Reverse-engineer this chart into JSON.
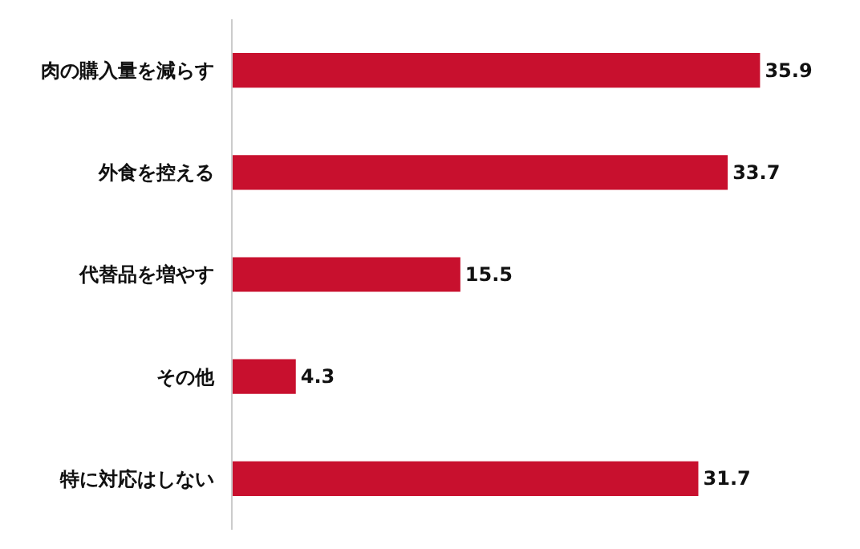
{
  "chart_data": {
    "type": "bar",
    "orientation": "horizontal",
    "categories": [
      "肉の購入量を減らす",
      "外食を控える",
      "代替品を増やす",
      "その他",
      "特に対応はしない"
    ],
    "values": [
      35.9,
      33.7,
      15.5,
      4.3,
      31.7
    ],
    "color": "#c8102e",
    "data_labels": true,
    "tick_labels": "y"
  }
}
